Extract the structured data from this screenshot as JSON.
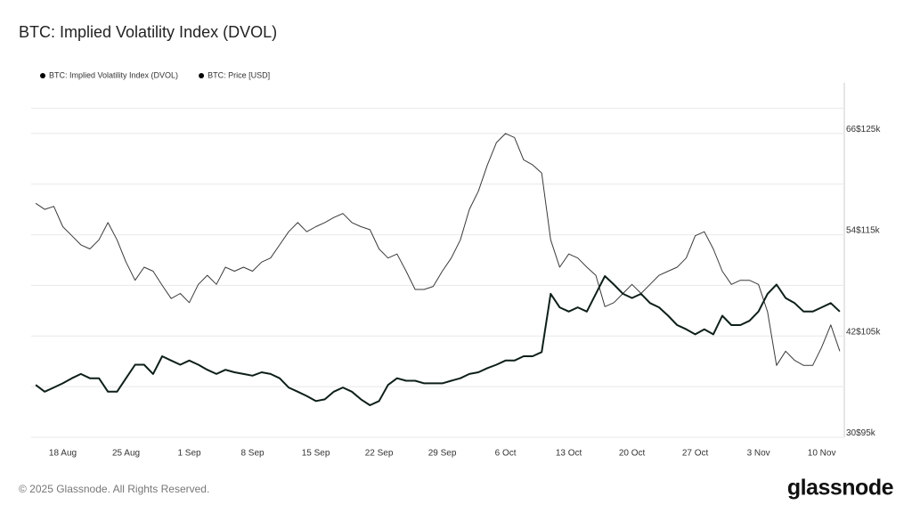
{
  "chart_data": {
    "type": "line",
    "title": "BTC: Implied Volatility Index (DVOL)",
    "x": [
      "15 Aug",
      "16 Aug",
      "17 Aug",
      "18 Aug",
      "19 Aug",
      "20 Aug",
      "21 Aug",
      "22 Aug",
      "23 Aug",
      "24 Aug",
      "25 Aug",
      "26 Aug",
      "27 Aug",
      "28 Aug",
      "29 Aug",
      "30 Aug",
      "31 Aug",
      "1 Sep",
      "2 Sep",
      "3 Sep",
      "4 Sep",
      "5 Sep",
      "6 Sep",
      "7 Sep",
      "8 Sep",
      "9 Sep",
      "10 Sep",
      "11 Sep",
      "12 Sep",
      "13 Sep",
      "14 Sep",
      "15 Sep",
      "16 Sep",
      "17 Sep",
      "18 Sep",
      "19 Sep",
      "20 Sep",
      "21 Sep",
      "22 Sep",
      "23 Sep",
      "24 Sep",
      "25 Sep",
      "26 Sep",
      "27 Sep",
      "28 Sep",
      "29 Sep",
      "30 Sep",
      "1 Oct",
      "2 Oct",
      "3 Oct",
      "4 Oct",
      "5 Oct",
      "6 Oct",
      "7 Oct",
      "8 Oct",
      "9 Oct",
      "10 Oct",
      "11 Oct",
      "12 Oct",
      "13 Oct",
      "14 Oct",
      "15 Oct",
      "16 Oct",
      "17 Oct",
      "18 Oct",
      "19 Oct",
      "20 Oct",
      "21 Oct",
      "22 Oct",
      "23 Oct",
      "24 Oct",
      "25 Oct",
      "26 Oct",
      "27 Oct",
      "28 Oct",
      "29 Oct",
      "30 Oct",
      "31 Oct",
      "1 Nov",
      "2 Nov",
      "3 Nov",
      "4 Nov",
      "5 Nov",
      "6 Nov",
      "7 Nov",
      "8 Nov",
      "9 Nov",
      "10 Nov",
      "11 Nov",
      "12 Nov"
    ],
    "xticks": [
      "18 Aug",
      "25 Aug",
      "1 Sep",
      "8 Sep",
      "15 Sep",
      "22 Sep",
      "29 Sep",
      "6 Oct",
      "13 Oct",
      "20 Oct",
      "27 Oct",
      "3 Nov",
      "10 Nov"
    ],
    "series": [
      {
        "name": "BTC: Implied Volatility Index (DVOL)",
        "color": "#0d1f18",
        "axis": "y",
        "values": [
          36.2,
          35.4,
          35.9,
          36.4,
          37.0,
          37.5,
          37.0,
          37.0,
          35.4,
          35.4,
          37.0,
          38.6,
          38.6,
          37.5,
          39.6,
          39.1,
          38.6,
          39.1,
          38.6,
          38.0,
          37.5,
          38.0,
          37.7,
          37.5,
          37.3,
          37.7,
          37.5,
          37.0,
          35.9,
          35.4,
          34.9,
          34.3,
          34.5,
          35.4,
          35.9,
          35.4,
          34.5,
          33.8,
          34.3,
          36.2,
          37.0,
          36.7,
          36.7,
          36.4,
          36.4,
          36.4,
          36.7,
          37.0,
          37.5,
          37.7,
          38.2,
          38.6,
          39.1,
          39.1,
          39.6,
          39.6,
          40.1,
          47.0,
          45.4,
          44.9,
          45.4,
          44.9,
          47.0,
          49.1,
          48.1,
          47.0,
          46.5,
          47.0,
          45.9,
          45.4,
          44.4,
          43.3,
          42.8,
          42.2,
          42.8,
          42.2,
          44.4,
          43.3,
          43.3,
          43.8,
          44.9,
          47.0,
          48.1,
          46.5,
          45.9,
          44.9,
          44.9,
          45.4,
          45.9,
          44.9
        ]
      },
      {
        "name": "BTC: Price [USD]",
        "color": "#3a3a3a",
        "axis": "y2",
        "values": [
          118100,
          117500,
          117800,
          115800,
          114900,
          114000,
          113600,
          114500,
          116200,
          114500,
          112300,
          110500,
          111800,
          111400,
          110000,
          108700,
          109200,
          108300,
          110100,
          111000,
          110100,
          111800,
          111400,
          111800,
          111400,
          112300,
          112700,
          114000,
          115300,
          116200,
          115300,
          115800,
          116200,
          116700,
          117100,
          116200,
          115800,
          115500,
          113600,
          112700,
          113100,
          111400,
          109600,
          109600,
          109900,
          111400,
          112700,
          114500,
          117500,
          119300,
          121900,
          124100,
          125000,
          124600,
          122400,
          121900,
          121100,
          114500,
          111800,
          113100,
          112700,
          111800,
          111000,
          107900,
          108300,
          109200,
          110100,
          109200,
          110100,
          111000,
          111400,
          111800,
          112700,
          114900,
          115300,
          113600,
          111400,
          110100,
          110500,
          110500,
          110100,
          107400,
          102100,
          103500,
          102600,
          102100,
          102100,
          103900,
          106100,
          103500
        ]
      }
    ],
    "ylim": [
      30,
      72
    ],
    "yticks": [
      30,
      42,
      54,
      66
    ],
    "y2lim": [
      95000,
      130000
    ],
    "y2ticks": [
      {
        "value": 95000,
        "label": "$95k"
      },
      {
        "value": 105000,
        "label": "$105k"
      },
      {
        "value": 115000,
        "label": "$115k"
      },
      {
        "value": 125000,
        "label": "$125k"
      }
    ],
    "grid": true,
    "minor_grid": true
  },
  "footer": {
    "copyright": "© 2025 Glassnode. All Rights Reserved.",
    "brand": "glassnode"
  }
}
